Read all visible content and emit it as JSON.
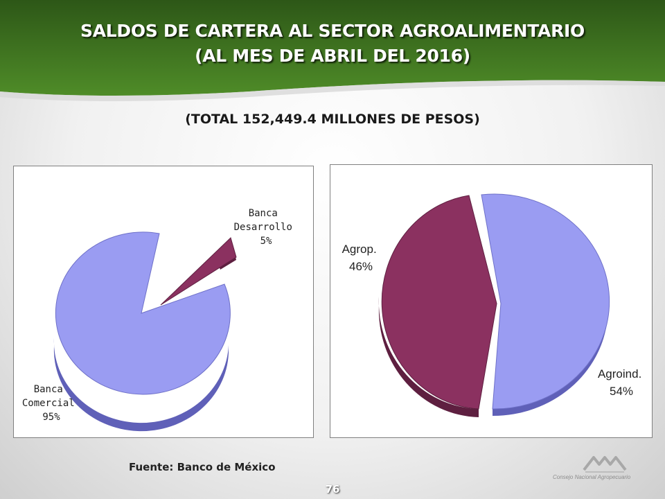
{
  "header": {
    "title_line1": "SALDOS DE CARTERA AL SECTOR AGROALIMENTARIO",
    "title_line2": "(AL MES DE ABRIL DEL 2016)",
    "subtitle": "(TOTAL 152,449.4 MILLONES DE PESOS)"
  },
  "colors": {
    "banner_dark": "#2c5516",
    "banner_light": "#4d8a26",
    "slice_blue": "#9a9cf2",
    "slice_blue_dark": "#5f60b8",
    "slice_maroon": "#8b3160",
    "slice_maroon_dark": "#5e1f40"
  },
  "chart_data": [
    {
      "type": "pie",
      "slices": [
        {
          "label": "Banca Comercial",
          "label_lines": [
            "Banca",
            "Comercial"
          ],
          "pct_label": "95%",
          "value": 95,
          "color": "#9a9cf2"
        },
        {
          "label": "Banca Desarrollo",
          "label_lines": [
            "Banca",
            "Desarrollo"
          ],
          "pct_label": "5%",
          "value": 5,
          "color": "#8b3160"
        }
      ]
    },
    {
      "type": "pie",
      "slices": [
        {
          "label": "Agrop.",
          "pct_label": "46%",
          "value": 46,
          "color": "#8b3160"
        },
        {
          "label": "Agroind.",
          "pct_label": "54%",
          "value": 54,
          "color": "#9a9cf2"
        }
      ]
    }
  ],
  "footer": {
    "source": "Fuente: Banco de México",
    "page_number": "76",
    "logo_text": "Consejo Nacional Agropecuario"
  }
}
